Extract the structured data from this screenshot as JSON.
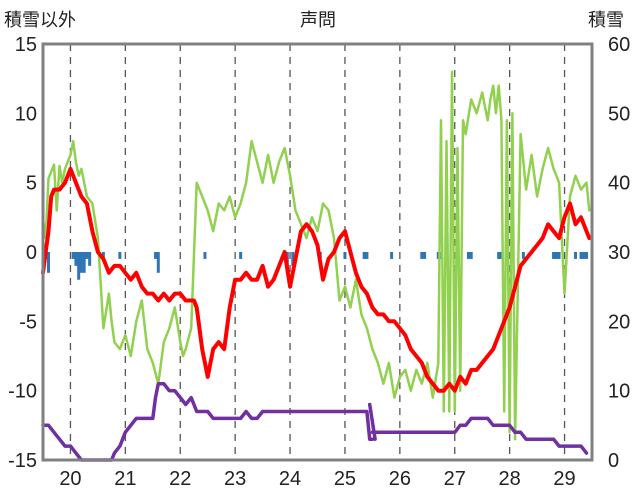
{
  "chart_data": {
    "type": "line",
    "title": "声問",
    "left_axis_label": "積雪以外",
    "right_axis_label": "積雪",
    "x_tick_labels": [
      "20",
      "21",
      "22",
      "23",
      "24",
      "25",
      "26",
      "27",
      "28",
      "29"
    ],
    "left_ylim": [
      -15,
      15
    ],
    "left_yticks": [
      -15,
      -10,
      -5,
      0,
      5,
      10,
      15
    ],
    "right_ylim": [
      0,
      60
    ],
    "right_yticks": [
      0,
      10,
      20,
      30,
      40,
      50,
      60
    ],
    "xlim": [
      19.5,
      29.5
    ],
    "grid": "vertical-dashed",
    "colors": {
      "red": "#ff0000",
      "green": "#92d050",
      "purple": "#7030a0",
      "blue": "#2e75b6",
      "frame": "#808080"
    },
    "series": [
      {
        "color_key": "green",
        "axis": "left",
        "x": [
          19.5,
          19.55,
          19.6,
          19.7,
          19.75,
          19.8,
          19.85,
          19.9,
          19.95,
          20.0,
          20.05,
          20.1,
          20.15,
          20.2,
          20.3,
          20.4,
          20.5,
          20.6,
          20.7,
          20.75,
          20.8,
          20.9,
          21.0,
          21.1,
          21.2,
          21.3,
          21.4,
          21.5,
          21.6,
          21.7,
          21.8,
          21.9,
          22.0,
          22.05,
          22.1,
          22.2,
          22.3,
          22.4,
          22.5,
          22.6,
          22.7,
          22.8,
          22.9,
          23.0,
          23.1,
          23.2,
          23.3,
          23.4,
          23.5,
          23.6,
          23.7,
          23.8,
          23.9,
          24.0,
          24.1,
          24.2,
          24.3,
          24.4,
          24.5,
          24.6,
          24.7,
          24.8,
          24.9,
          25.0,
          25.1,
          25.2,
          25.3,
          25.4,
          25.5,
          25.6,
          25.7,
          25.8,
          25.9,
          26.0,
          26.1,
          26.2,
          26.3,
          26.4,
          26.5,
          26.6,
          26.7,
          26.75,
          26.8,
          26.85,
          26.9,
          26.95,
          27.0,
          27.05,
          27.1,
          27.15,
          27.2,
          27.3,
          27.4,
          27.5,
          27.6,
          27.65,
          27.7,
          27.75,
          27.8,
          27.85,
          27.9,
          27.95,
          28.0,
          28.05,
          28.1,
          28.2,
          28.3,
          28.4,
          28.5,
          28.6,
          28.7,
          28.8,
          28.9,
          29.0,
          29.1,
          29.2,
          29.3,
          29.4,
          29.45
        ],
        "y": [
          2.3,
          1.0,
          5.3,
          6.3,
          3.0,
          6.2,
          5.0,
          6.0,
          6.5,
          7.0,
          8.0,
          6.5,
          5.5,
          6.0,
          4.0,
          3.5,
          1.0,
          -5.5,
          -3.0,
          -5.0,
          -6.5,
          -7.0,
          -6.0,
          -7.5,
          -5.0,
          -3.5,
          -7.0,
          -8.0,
          -9.5,
          -6.5,
          -5.5,
          -4.0,
          -6.5,
          -7.5,
          -7.0,
          -5.5,
          5.0,
          4.0,
          3.0,
          1.5,
          3.5,
          3.0,
          4.0,
          2.5,
          3.5,
          5.0,
          8.0,
          6.5,
          5.0,
          7.0,
          5.0,
          6.5,
          7.5,
          5.5,
          3.0,
          2.0,
          1.0,
          2.5,
          1.5,
          3.5,
          3.0,
          1.0,
          -3.5,
          -2.5,
          -4.0,
          -2.0,
          -4.5,
          -5.5,
          -7.0,
          -8.0,
          -9.5,
          -8.0,
          -10.5,
          -9.0,
          -8.5,
          -10.0,
          -8.5,
          -9.5,
          -8.0,
          -10.5,
          -8.0,
          9.5,
          -11.5,
          8.0,
          -11.5,
          13.0,
          -11.5,
          7.5,
          -10.0,
          9.5,
          8.5,
          11.0,
          10.0,
          11.5,
          9.5,
          11.0,
          12.0,
          10.0,
          12.0,
          9.5,
          -11.5,
          9.5,
          -13.0,
          10.0,
          -13.5,
          8.5,
          4.5,
          7.0,
          4.0,
          6.0,
          7.5,
          6.0,
          5.0,
          -3.0,
          4.0,
          5.5,
          4.5,
          5.0,
          3.0
        ]
      },
      {
        "color_key": "red",
        "axis": "left",
        "x": [
          19.5,
          19.55,
          19.6,
          19.65,
          19.7,
          19.8,
          19.9,
          20.0,
          20.1,
          20.2,
          20.3,
          20.4,
          20.5,
          20.6,
          20.7,
          20.8,
          20.9,
          21.0,
          21.1,
          21.2,
          21.3,
          21.4,
          21.5,
          21.6,
          21.7,
          21.8,
          21.9,
          22.0,
          22.1,
          22.2,
          22.25,
          22.3,
          22.4,
          22.5,
          22.6,
          22.7,
          22.8,
          22.9,
          23.0,
          23.1,
          23.2,
          23.3,
          23.4,
          23.5,
          23.6,
          23.7,
          23.8,
          23.9,
          24.0,
          24.1,
          24.2,
          24.3,
          24.4,
          24.5,
          24.6,
          24.7,
          24.8,
          24.9,
          25.0,
          25.1,
          25.2,
          25.3,
          25.4,
          25.5,
          25.6,
          25.7,
          25.8,
          25.9,
          26.0,
          26.1,
          26.2,
          26.3,
          26.4,
          26.5,
          26.6,
          26.7,
          26.8,
          26.9,
          27.0,
          27.1,
          27.2,
          27.3,
          27.4,
          27.5,
          27.6,
          27.7,
          27.8,
          27.9,
          28.0,
          28.1,
          28.2,
          28.3,
          28.4,
          28.5,
          28.6,
          28.7,
          28.8,
          28.9,
          29.0,
          29.1,
          29.2,
          29.3,
          29.4,
          29.45
        ],
        "y": [
          -1.5,
          0.0,
          1.5,
          4.0,
          4.5,
          4.5,
          5.0,
          6.0,
          5.0,
          4.0,
          3.5,
          1.5,
          0.0,
          -0.5,
          -1.5,
          -1.0,
          -1.0,
          -1.5,
          -2.0,
          -1.5,
          -2.5,
          -3.0,
          -3.0,
          -3.5,
          -3.0,
          -3.5,
          -3.0,
          -3.0,
          -3.5,
          -3.5,
          -3.5,
          -4.0,
          -7.0,
          -9.0,
          -7.0,
          -6.5,
          -7.0,
          -4.0,
          -2.0,
          -2.0,
          -1.5,
          -2.0,
          -2.0,
          -1.0,
          -2.5,
          -2.0,
          -1.0,
          0.0,
          -2.5,
          -0.5,
          1.5,
          2.0,
          1.5,
          0.5,
          -2.0,
          -0.5,
          0.0,
          1.0,
          1.5,
          0.0,
          -1.5,
          -2.5,
          -3.0,
          -4.0,
          -4.5,
          -4.5,
          -5.0,
          -5.0,
          -5.5,
          -6.0,
          -7.0,
          -7.5,
          -8.0,
          -9.0,
          -9.5,
          -10.0,
          -10.0,
          -9.5,
          -10.0,
          -9.0,
          -9.5,
          -8.5,
          -8.5,
          -8.0,
          -7.5,
          -7.0,
          -6.0,
          -5.0,
          -4.0,
          -2.5,
          -1.0,
          -0.5,
          0.0,
          0.5,
          1.0,
          2.0,
          1.5,
          1.0,
          2.5,
          3.5,
          2.0,
          2.5,
          1.5,
          1.0
        ]
      },
      {
        "color_key": "purple",
        "axis": "right",
        "segments": [
          {
            "x": [
              19.5,
              19.6,
              19.7,
              19.8,
              19.9,
              20.0,
              20.1,
              20.2,
              20.3,
              20.4,
              20.5,
              20.6,
              20.7,
              20.75,
              20.8,
              20.9,
              21.0,
              21.1,
              21.2,
              21.3,
              21.4,
              21.5,
              21.55,
              21.6,
              21.7,
              21.8,
              21.9,
              22.0,
              22.1,
              22.2,
              22.3,
              22.4,
              22.5,
              22.6,
              22.7,
              22.8,
              22.9,
              23.0,
              23.1,
              23.2,
              23.3,
              23.4,
              23.5,
              23.6,
              23.7,
              23.8,
              23.9,
              24.0,
              24.1,
              24.2,
              24.3,
              24.4,
              24.5,
              24.6,
              24.7,
              24.8,
              24.9,
              25.0,
              25.1,
              25.2,
              25.3,
              25.4,
              25.45,
              25.5
            ],
            "y": [
              5,
              5,
              4,
              3,
              2,
              2,
              1,
              0,
              0,
              0,
              0,
              0,
              0,
              0,
              1,
              2,
              4,
              5,
              6,
              6,
              6,
              6,
              9,
              11,
              11,
              10,
              10,
              9,
              8,
              9,
              7,
              7,
              7,
              6,
              6,
              6,
              6,
              6,
              6,
              7,
              6,
              6,
              7,
              7,
              7,
              7,
              7,
              7,
              7,
              7,
              7,
              7,
              7,
              7,
              7,
              7,
              7,
              7,
              7,
              7,
              7,
              7,
              3,
              3
            ]
          },
          {
            "x": [
              25.45,
              25.55
            ],
            "y": [
              8,
              3
            ]
          },
          {
            "x": [
              25.5,
              25.6,
              25.7,
              25.8,
              25.9,
              26.0,
              26.1,
              26.2,
              26.3,
              26.4,
              26.5,
              26.6,
              26.7,
              26.8,
              26.9,
              27.0,
              27.1,
              27.2,
              27.3,
              27.4,
              27.5,
              27.6,
              27.7,
              27.8,
              27.9,
              28.0,
              28.1,
              28.2,
              28.3,
              28.4,
              28.5,
              28.6,
              28.7,
              28.8,
              28.9,
              29.0,
              29.1,
              29.2,
              29.3,
              29.4
            ],
            "y": [
              4,
              4,
              4,
              4,
              4,
              4,
              4,
              4,
              4,
              4,
              4,
              4,
              4,
              4,
              4,
              4,
              5,
              5,
              6,
              6,
              6,
              6,
              5,
              5,
              5,
              5,
              4,
              4,
              3,
              3,
              3,
              3,
              3,
              3,
              2,
              2,
              2,
              2,
              2,
              1
            ]
          }
        ]
      },
      {
        "color_key": "blue",
        "axis": "left",
        "kind": "bars",
        "x": [
          19.58,
          19.6,
          20.05,
          20.1,
          20.15,
          20.2,
          20.25,
          20.3,
          20.35,
          20.6,
          20.9,
          21.55,
          21.6,
          22.45,
          23.1,
          23.95,
          24.05,
          24.55,
          25.0,
          25.35,
          25.4,
          25.85,
          26.4,
          26.45,
          26.7,
          26.75,
          26.85,
          27.25,
          27.3,
          27.8,
          27.85,
          28.25,
          28.8,
          28.85,
          28.9,
          29.2,
          29.3,
          29.35,
          29.4
        ],
        "y": [
          -0.5,
          -1.5,
          -0.5,
          -1.0,
          -2.0,
          -1.5,
          -1.5,
          -0.5,
          -1.0,
          -0.5,
          -0.5,
          -0.5,
          -1.5,
          -0.5,
          -0.5,
          -1.5,
          -1.0,
          -0.5,
          -0.5,
          -0.5,
          -0.5,
          -0.5,
          -0.5,
          -0.5,
          -0.5,
          -0.5,
          -0.5,
          -0.5,
          -0.5,
          -0.5,
          -0.5,
          -0.5,
          -0.5,
          -0.5,
          -0.5,
          -0.5,
          -0.5,
          -0.5,
          -0.5
        ]
      }
    ]
  }
}
